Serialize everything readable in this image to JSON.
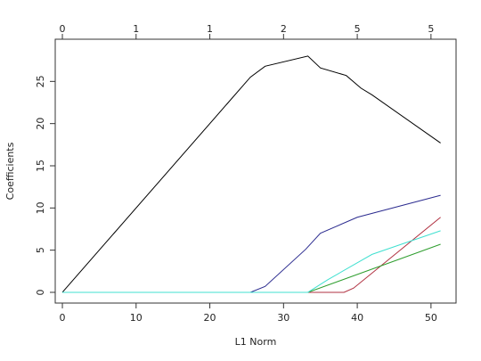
{
  "chart_data": {
    "type": "line",
    "x_label": "L1 Norm",
    "y_label": "Coefficients",
    "xlim": [
      -0.97,
      53.4
    ],
    "ylim": [
      -1.27,
      30
    ],
    "xticks": [
      0,
      10,
      20,
      30,
      40,
      50
    ],
    "yticks": [
      0,
      5,
      10,
      15,
      20,
      25
    ],
    "x2ticks": [
      0,
      {
        "value": 10,
        "label": "1"
      },
      {
        "value": 20,
        "label": "1"
      },
      {
        "value": 30,
        "label": "2"
      },
      {
        "value": 40,
        "label": "5"
      },
      {
        "value": 50,
        "label": "5"
      }
    ],
    "grid": false,
    "series": [
      {
        "color": "#000000",
        "x": [
          0,
          25.5,
          27.5,
          33.3,
          35,
          38.5,
          40.5,
          42,
          51.3
        ],
        "values": [
          0,
          25.5,
          26.8,
          28,
          26.6,
          25.7,
          24.2,
          23.4,
          17.7
        ]
      },
      {
        "color": "#b03040",
        "x": [
          0,
          38.2,
          39.5,
          51.3
        ],
        "values": [
          0,
          0,
          0.5,
          8.9
        ]
      },
      {
        "color": "#2e9e2e",
        "x": [
          0,
          33.3,
          51.3
        ],
        "values": [
          0,
          0,
          5.7
        ]
      },
      {
        "color": "#2b2b8f",
        "x": [
          0,
          25.5,
          27.5,
          33,
          35,
          40,
          51.3
        ],
        "values": [
          0,
          0,
          0.7,
          5.1,
          7,
          8.9,
          11.5
        ]
      },
      {
        "color": "#40e0d0",
        "x": [
          0,
          33.3,
          36,
          40,
          42,
          51.3
        ],
        "values": [
          0,
          0,
          1.5,
          3.5,
          4.5,
          7.3
        ]
      }
    ]
  }
}
